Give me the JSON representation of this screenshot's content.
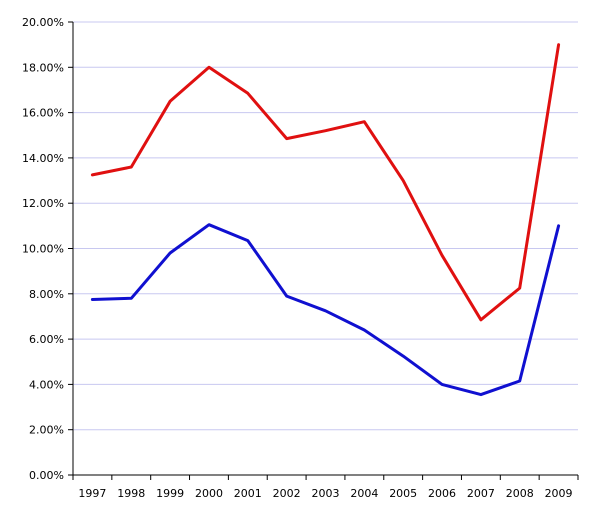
{
  "chart_data": {
    "type": "line",
    "title": "",
    "xlabel": "",
    "ylabel": "",
    "categories": [
      "1997",
      "1998",
      "1999",
      "2000",
      "2001",
      "2002",
      "2003",
      "2004",
      "2005",
      "2006",
      "2007",
      "2008",
      "2009"
    ],
    "y_tick_labels": [
      "0.00%",
      "2.00%",
      "4.00%",
      "6.00%",
      "8.00%",
      "10.00%",
      "12.00%",
      "14.00%",
      "16.00%",
      "18.00%",
      "20.00%"
    ],
    "ylim": [
      0,
      20
    ],
    "y_unit": "percent",
    "grid": true,
    "legend": "none",
    "series": [
      {
        "color": "#e01010",
        "values": [
          13.25,
          13.6,
          16.5,
          18.0,
          16.85,
          14.85,
          15.2,
          15.6,
          13.0,
          9.7,
          6.85,
          8.25,
          19.0
        ]
      },
      {
        "color": "#1010d0",
        "values": [
          7.75,
          7.8,
          9.8,
          11.05,
          10.35,
          7.9,
          7.25,
          6.4,
          5.25,
          4.0,
          3.55,
          4.15,
          11.0
        ]
      }
    ]
  }
}
